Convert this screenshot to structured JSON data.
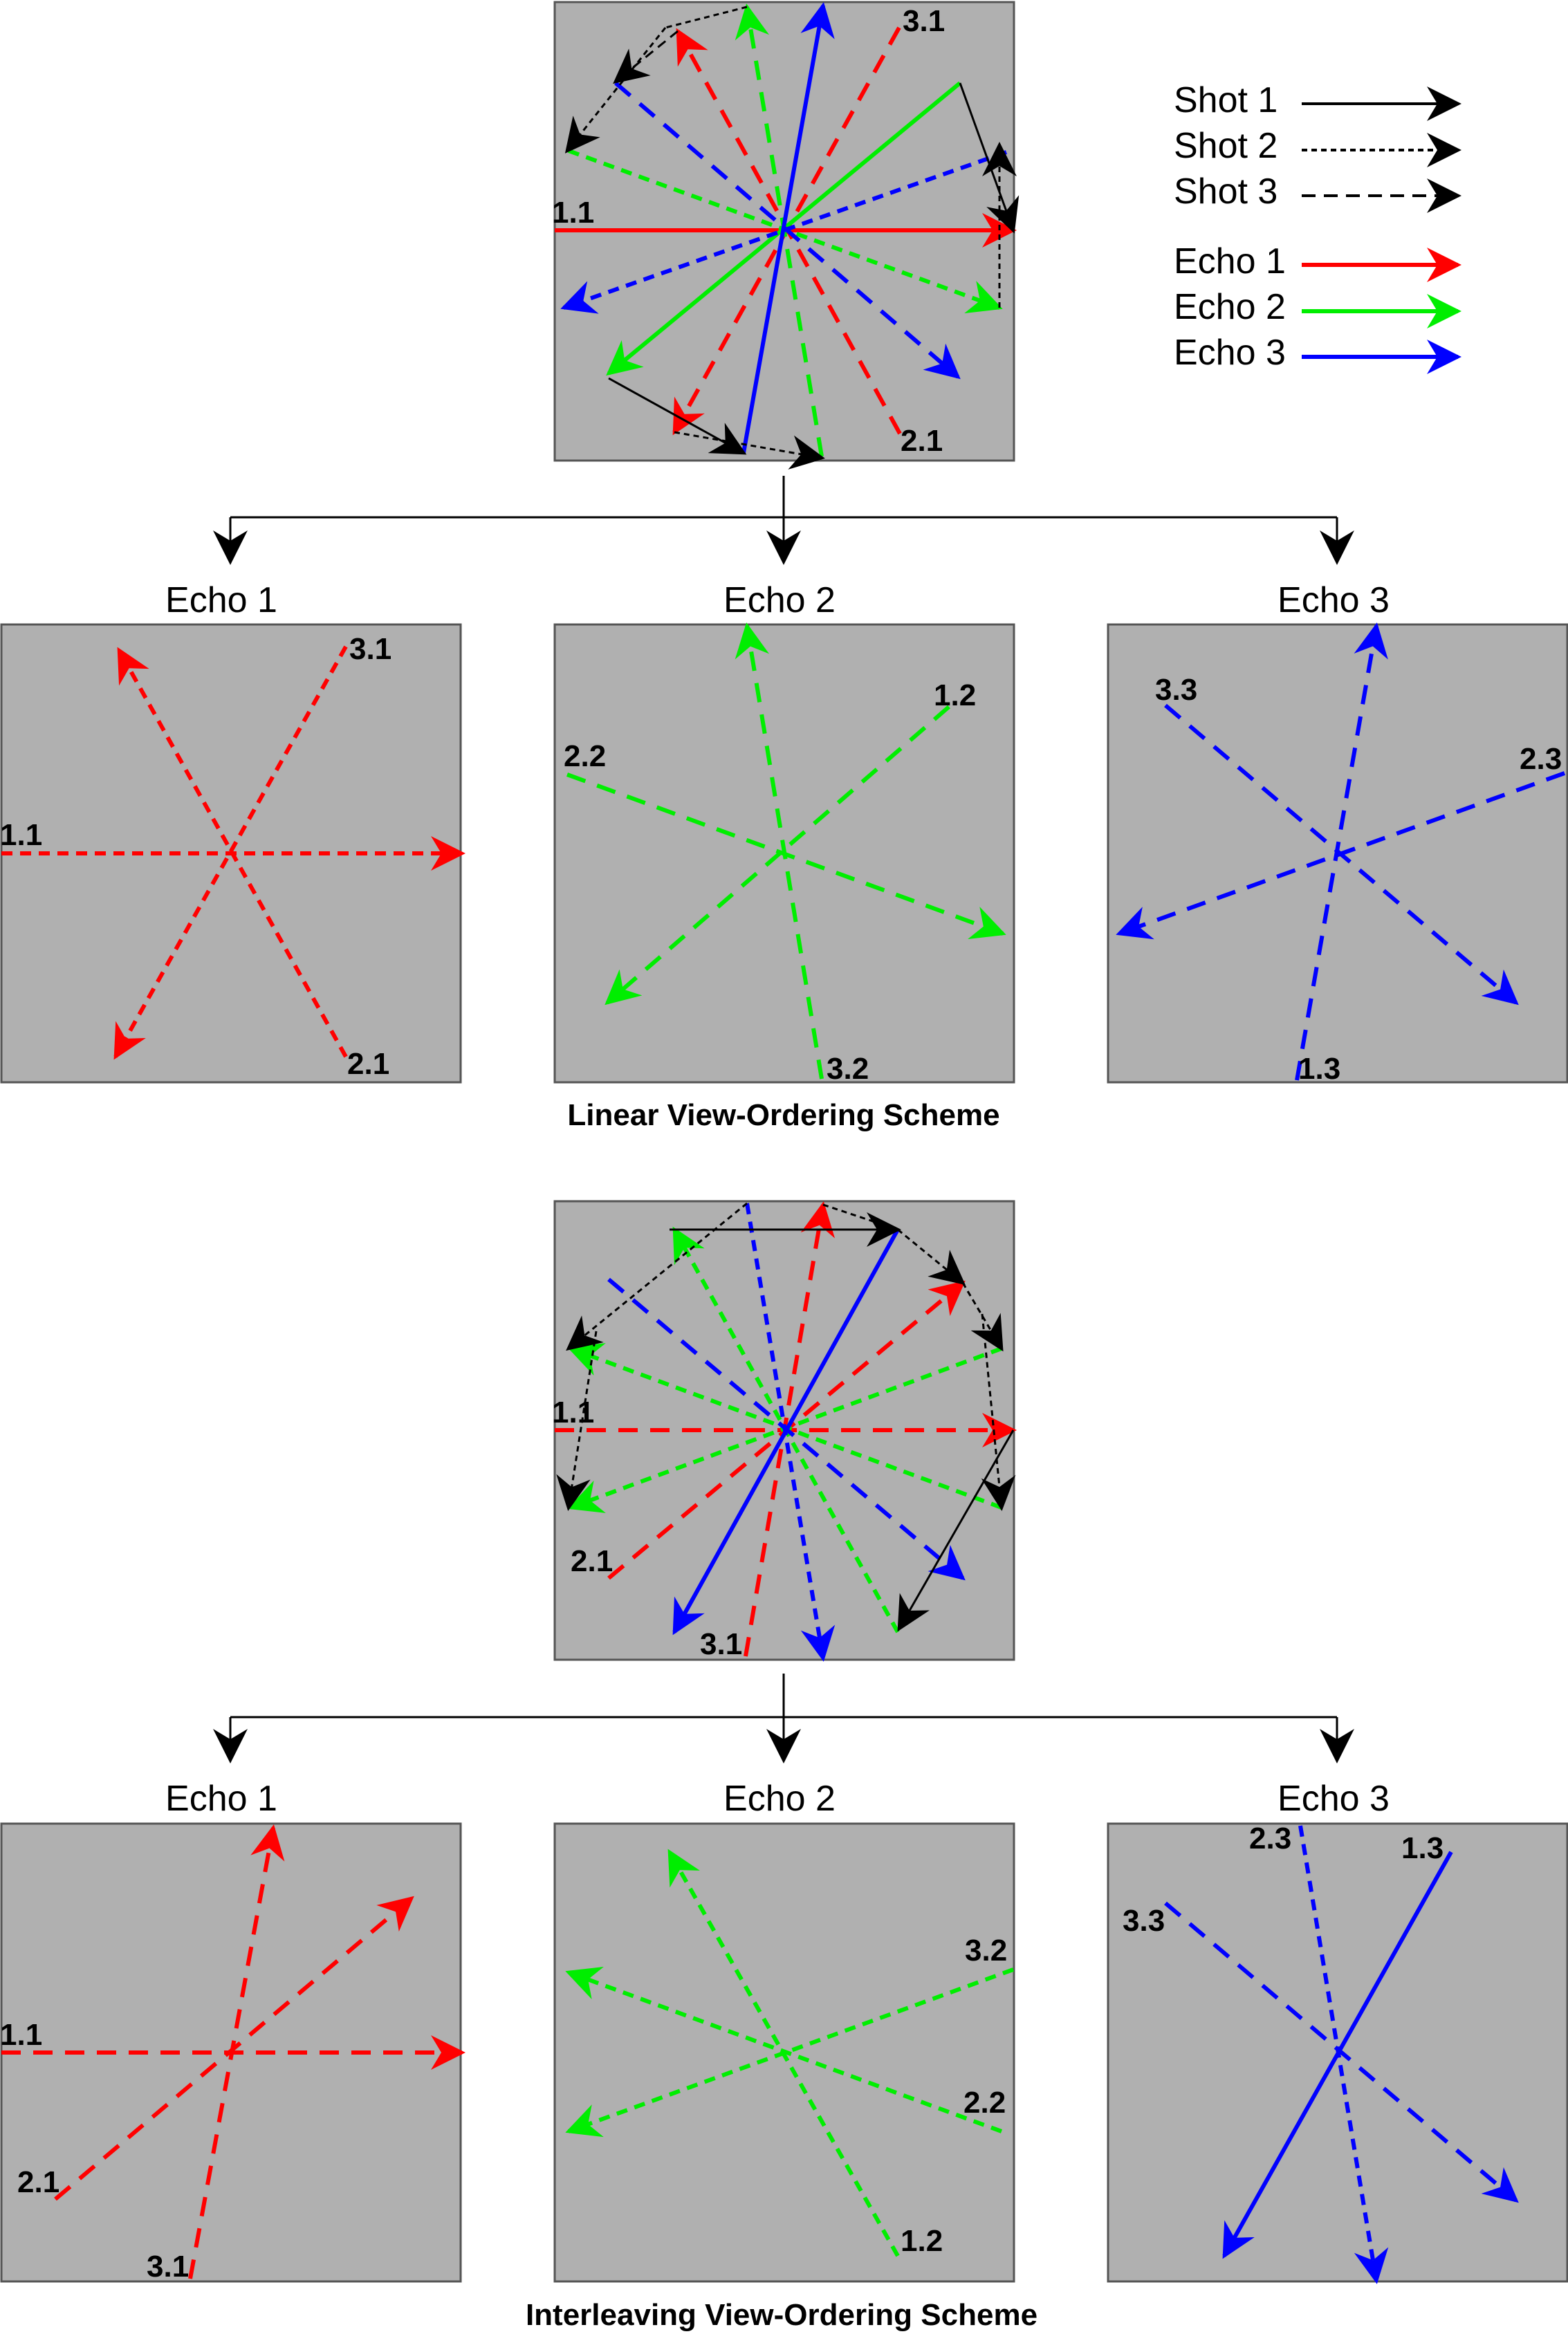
{
  "legend": {
    "shot1": "Shot 1",
    "shot2": "Shot 2",
    "shot3": "Shot 3",
    "echo1": "Echo 1",
    "echo2": "Echo 2",
    "echo3": "Echo 3"
  },
  "colors": {
    "echo1": "#ff0000",
    "echo2": "#00ee00",
    "echo3": "#0000ff",
    "trajectory": "#000000",
    "panel_bg": "#b0b0b0"
  },
  "linear": {
    "caption": "Linear View-Ordering Scheme",
    "combined_labels": [
      "3.1",
      "1.1",
      "2.1"
    ],
    "echo_titles": [
      "Echo 1",
      "Echo 2",
      "Echo 3"
    ],
    "echo1_labels": [
      "3.1",
      "1.1",
      "2.1"
    ],
    "echo2_labels": [
      "1.2",
      "2.2",
      "3.2"
    ],
    "echo3_labels": [
      "3.3",
      "2.3",
      "1.3"
    ]
  },
  "interleaving": {
    "caption": "Interleaving View-Ordering Scheme",
    "combined_labels": [
      "1.1",
      "2.1",
      "3.1"
    ],
    "echo_titles": [
      "Echo 1",
      "Echo 2",
      "Echo 3"
    ],
    "echo1_labels": [
      "1.1",
      "2.1",
      "3.1"
    ],
    "echo2_labels": [
      "3.2",
      "2.2",
      "1.2"
    ],
    "echo3_labels": [
      "2.3",
      "1.3",
      "3.3"
    ]
  }
}
